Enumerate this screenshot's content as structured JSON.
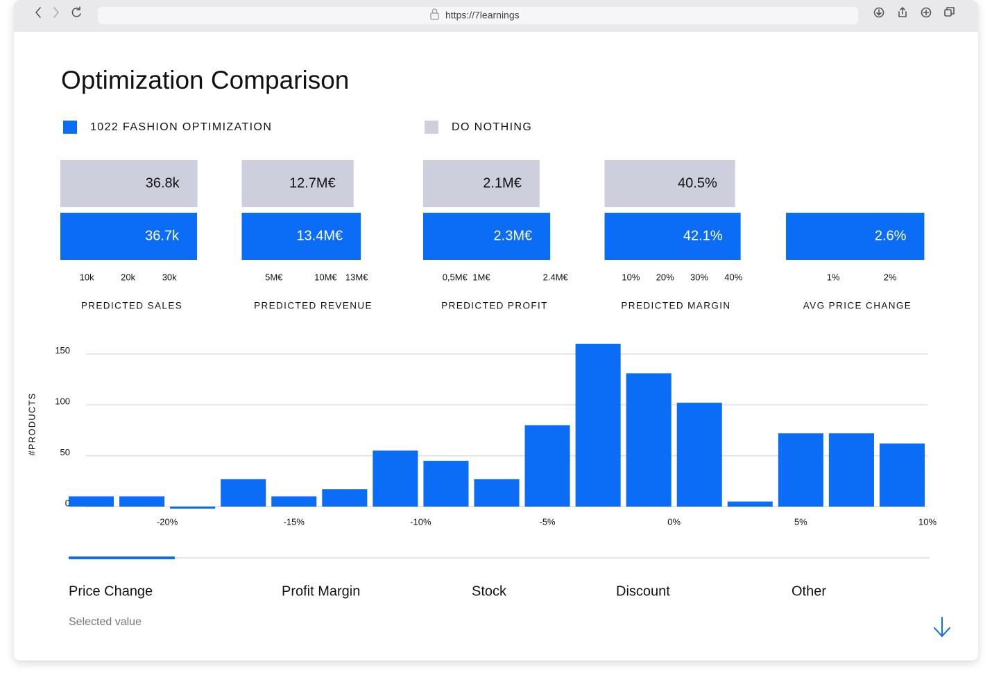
{
  "browser": {
    "url": "https://7learnings"
  },
  "title": "Optimization Comparison",
  "legend": [
    {
      "label": "1022 FASHION OPTIMIZATION",
      "color": "#0b6cf6"
    },
    {
      "label": "DO NOTHING",
      "color": "#cdcfdc"
    }
  ],
  "kpis": [
    {
      "label": "PREDICTED SALES",
      "values": [
        36.7,
        36.8
      ],
      "value_labels": [
        "36.7k",
        "36.8k"
      ],
      "xlim": [
        3.6,
        38.2
      ],
      "xticks": [
        {
          "value": 10,
          "label": "10k"
        },
        {
          "value": 20,
          "label": "20k"
        },
        {
          "value": 30,
          "label": "30k"
        }
      ]
    },
    {
      "label": "PREDICTED REVENUE",
      "values": [
        13.4,
        12.7
      ],
      "value_labels": [
        "13.4M€",
        "12.7M€"
      ],
      "xlim": [
        1.9,
        15.7
      ],
      "xticks": [
        {
          "value": 5,
          "label": "5M€"
        },
        {
          "value": 10,
          "label": "10M€"
        },
        {
          "value": 13,
          "label": "13M€"
        }
      ]
    },
    {
      "label": "PREDICTED PROFIT",
      "values": [
        2.3,
        2.1
      ],
      "value_labels": [
        "2.3M€",
        "2.1M€"
      ],
      "xlim": [
        -0.1,
        2.6
      ],
      "xticks": [
        {
          "value": 0.5,
          "label": "0,5M€"
        },
        {
          "value": 1,
          "label": "1M€"
        },
        {
          "value": 2.4,
          "label": "2.4M€"
        }
      ]
    },
    {
      "label": "PREDICTED MARGIN",
      "values": [
        42.1,
        40.5
      ],
      "value_labels": [
        "42.1%",
        "40.5%"
      ],
      "xlim": [
        2.3,
        44.1
      ],
      "xticks": [
        {
          "value": 10,
          "label": "10%"
        },
        {
          "value": 20,
          "label": "20%"
        },
        {
          "value": 30,
          "label": "30%"
        },
        {
          "value": 40,
          "label": "40%"
        }
      ]
    },
    {
      "label": "AVG PRICE CHANGE",
      "values": [
        2.6,
        null
      ],
      "value_labels": [
        "2.6%",
        null
      ],
      "xlim": [
        0.17,
        2.68
      ],
      "xticks": [
        {
          "value": 1,
          "label": "1%"
        },
        {
          "value": 2,
          "label": "2%"
        }
      ]
    }
  ],
  "chart_data": {
    "type": "histogram",
    "ylabel": "#PRODUCTS",
    "bins": [
      -24,
      -22,
      -20,
      -18,
      -16,
      -14,
      -12,
      -10,
      -8,
      -6,
      -4,
      -2,
      0,
      2,
      4,
      6,
      8,
      10
    ],
    "values": [
      10,
      10,
      -2,
      27,
      10,
      17,
      55,
      45,
      27,
      80,
      160,
      131,
      102,
      5,
      72,
      72,
      62
    ],
    "color": "#0b6cf6",
    "xlim": [
      -24,
      10
    ],
    "xticks": [
      {
        "value": -20,
        "label": "-20%"
      },
      {
        "value": -15,
        "label": "-15%"
      },
      {
        "value": -10,
        "label": "-10%"
      },
      {
        "value": -5,
        "label": "-5%"
      },
      {
        "value": 0,
        "label": "0%"
      },
      {
        "value": 5,
        "label": "5%"
      },
      {
        "value": 10,
        "label": "10%"
      }
    ],
    "ylim": [
      0,
      160
    ],
    "yticks": [
      0,
      50,
      100,
      150
    ],
    "grid": true
  },
  "tabs": {
    "items": [
      "Price Change",
      "Profit Margin",
      "Stock",
      "Discount",
      "Other"
    ],
    "selected": 0,
    "caption": "Selected value"
  }
}
